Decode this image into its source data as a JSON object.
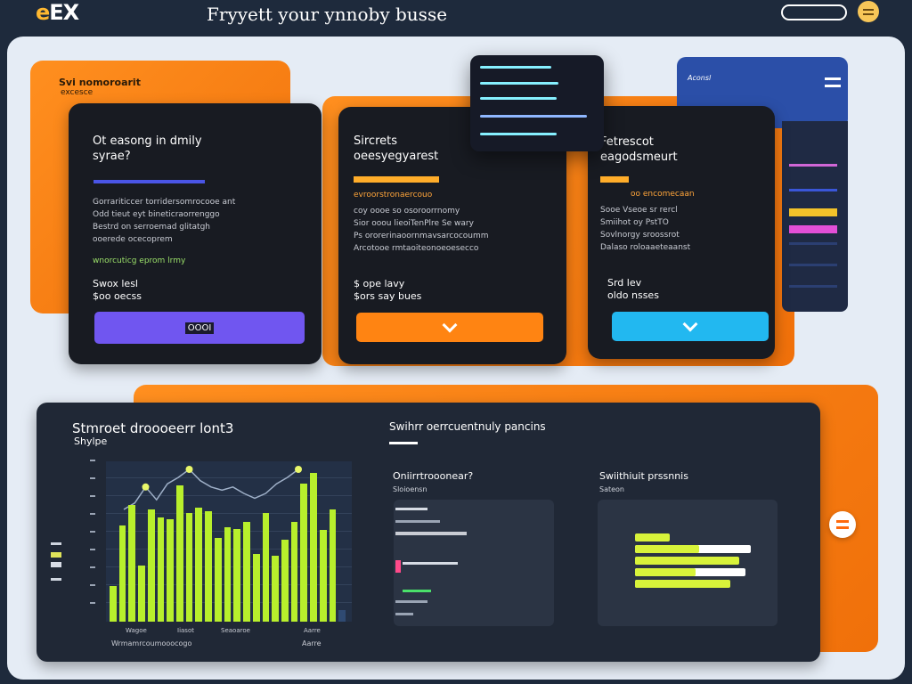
{
  "header": {
    "logo_prefix": "e",
    "logo_text": "EX",
    "headline": "Fryyett your ynnoby busse"
  },
  "banner": {
    "title": "Svi nomoroarit",
    "subtitle": "excesce"
  },
  "plans": [
    {
      "title": "Ot easong in dmily syrae?",
      "lines": [
        "Gorrariticcer torridersomrocooe ant",
        "Odd tieut eyt bineticraorrenggo",
        "Bestrd on serroemad glitatgh",
        "ooerede ocecoprem"
      ],
      "note": "wnorcuticg eprom lrmy",
      "price_top": "Swox lesl",
      "price_bottom": "$oo oecss",
      "button_label": "OOOI"
    },
    {
      "title": "Sircrets oeesyegyarest",
      "tagline": "evroorstronaercouo",
      "lines": [
        "coy oooe so osoroorrnomy",
        "Sior ooou lieoiTenPlre Se wary",
        "Ps ororerinaoornmavsarcocoumm",
        "Arcotooe rmtaoiteonoeoesecco"
      ],
      "price_top": "$ ope lavy",
      "price_bottom": "$ors say bues"
    },
    {
      "title": "Fetrescot eagodsmeurt",
      "tagline": "oo encomecaan",
      "lines": [
        "Sooe Vseoe sr rercl",
        "Smiihot oy PstTO",
        "Sovlnorgy sroossrot",
        "Dalaso roloaaeteaanst"
      ],
      "price_top": "Srd lev",
      "price_bottom": "oldo nsses"
    }
  ],
  "side_card": {
    "label": "Aconsl"
  },
  "analytics": {
    "title": "Stmroet droooeerr lont3",
    "subtitle": "Shylpe",
    "x_labels": [
      "Wagoe",
      "Iiasot",
      "Seaoaroe",
      "Aarre"
    ],
    "footer": "Wrmamrcoumooocogo",
    "chart_data": {
      "type": "bar",
      "values": [
        22,
        60,
        73,
        35,
        70,
        65,
        64,
        85,
        68,
        71,
        69,
        52,
        59,
        58,
        62,
        42,
        68,
        41,
        51,
        62,
        86,
        93,
        57,
        70,
        7
      ],
      "line_values": [
        70,
        74,
        84,
        76,
        86,
        90,
        95,
        88,
        84,
        82,
        84,
        80,
        77,
        80,
        86,
        90,
        95
      ],
      "ylim": [
        0,
        100
      ]
    },
    "breakdown_title": "Swihrr oerrcuentnuly pancins",
    "metrics": [
      {
        "title": "Oniirrtrooonear?",
        "subtitle": "Sloioensn"
      },
      {
        "title": "Swiithiuit prssnnis",
        "subtitle": "Sateon",
        "chart_data": {
          "type": "bar",
          "values": [
            30,
            100,
            90,
            95,
            82
          ]
        }
      }
    ]
  },
  "colors": {
    "accent_orange": "#ff8412",
    "accent_purple": "#7056f0",
    "accent_cyan": "#22b8f0",
    "chart_lime": "#b8ef2c"
  }
}
